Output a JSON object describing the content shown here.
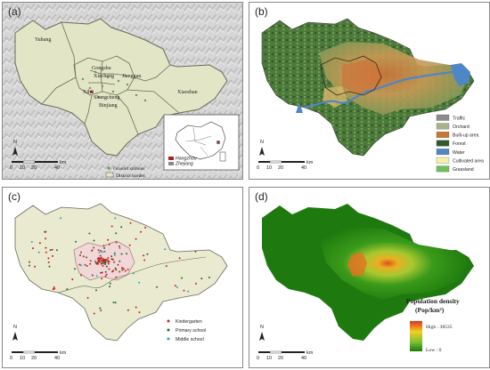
{
  "panels": {
    "a": {
      "label": "(a)",
      "districts": [
        "Yuhang",
        "Gongshu",
        "Xiacheng",
        "Jianggan",
        "Xihu",
        "Shangcheng",
        "Binjiang",
        "Xiaoshan"
      ],
      "legend": {
        "stations": "Ground stations",
        "border": "District border"
      },
      "inset_legend": [
        "Hangzhou",
        "Zhejiang"
      ],
      "scale": {
        "unit": "km",
        "ticks": [
          "0",
          "10",
          "20",
          "40"
        ]
      },
      "north": "N"
    },
    "b": {
      "label": "(b)",
      "legend": [
        {
          "name": "Traffic",
          "color": "#8c8c8c"
        },
        {
          "name": "Orchard",
          "color": "#a8b487"
        },
        {
          "name": "Built-up area",
          "color": "#c8782e"
        },
        {
          "name": "Forest",
          "color": "#2f5a2f"
        },
        {
          "name": "Water",
          "color": "#4f86c6"
        },
        {
          "name": "Cultivated area",
          "color": "#f3f3a8"
        },
        {
          "name": "Grassland",
          "color": "#6fbf5a"
        }
      ],
      "scale": {
        "unit": "km",
        "ticks": [
          "0",
          "10",
          "20",
          "40"
        ]
      },
      "north": "N"
    },
    "c": {
      "label": "(c)",
      "legend": [
        {
          "name": "Kindergarten",
          "color": "#cc2222"
        },
        {
          "name": "Primary school",
          "color": "#2a6b2a"
        },
        {
          "name": "Middle school",
          "color": "#2aa9b8"
        }
      ],
      "scale": {
        "unit": "km",
        "ticks": [
          "0",
          "10",
          "20",
          "40"
        ]
      },
      "north": "N"
    },
    "d": {
      "label": "(d)",
      "legend": {
        "title": "Population density",
        "unit": "(Pop/km²)",
        "high": "High : 38535",
        "low": "Low : 0"
      },
      "scale": {
        "unit": "km",
        "ticks": [
          "0",
          "10",
          "20",
          "40"
        ]
      },
      "north": "N"
    }
  }
}
